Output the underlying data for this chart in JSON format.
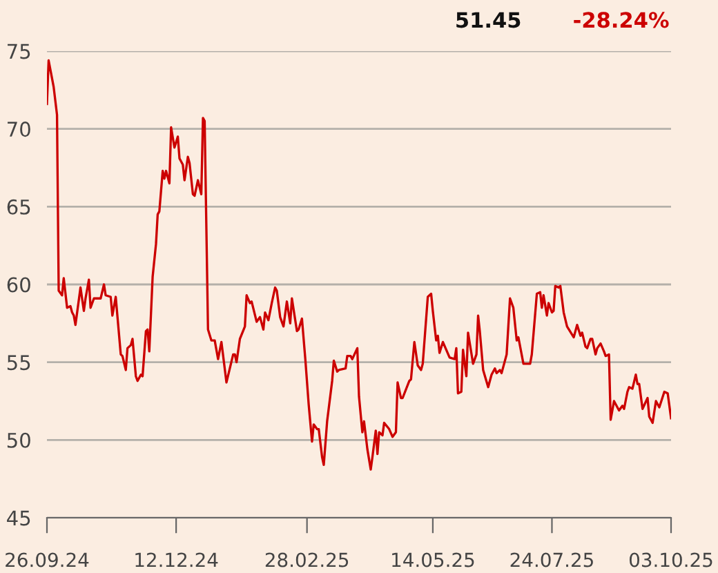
{
  "chart_data": {
    "type": "line",
    "annotations": [
      "51.45",
      "-28.24%"
    ],
    "xlim": [
      "2024-09-26",
      "2025-10-03"
    ],
    "xticks": [
      {
        "value": "2024-09-26",
        "label": "26.09.24"
      },
      {
        "value": "2024-12-12",
        "label": "12.12.24"
      },
      {
        "value": "2025-02-28",
        "label": "28.02.25"
      },
      {
        "value": "2025-05-14",
        "label": "14.05.25"
      },
      {
        "value": "2025-07-24",
        "label": "24.07.25"
      },
      {
        "value": "2025-10-03",
        "label": "03.10.25"
      }
    ],
    "ylim": [
      45,
      75
    ],
    "yticks": [
      45,
      50,
      55,
      60,
      65,
      70,
      75
    ],
    "grid": "y",
    "series": [
      {
        "color": "#cc0000",
        "x": [
          "2024-09-26",
          "2024-09-27",
          "2024-09-30",
          "2024-10-02",
          "2024-10-03",
          "2024-10-05",
          "2024-10-06",
          "2024-10-08",
          "2024-10-10",
          "2024-10-11",
          "2024-10-12",
          "2024-10-13",
          "2024-10-16",
          "2024-10-18",
          "2024-10-19",
          "2024-10-21",
          "2024-10-22",
          "2024-10-24",
          "2024-10-28",
          "2024-10-30",
          "2024-10-31",
          "2024-11-03",
          "2024-11-04",
          "2024-11-06",
          "2024-11-09",
          "2024-11-10",
          "2024-11-12",
          "2024-11-13",
          "2024-11-15",
          "2024-11-16",
          "2024-11-18",
          "2024-11-19",
          "2024-11-21",
          "2024-11-22",
          "2024-11-24",
          "2024-11-25",
          "2024-11-26",
          "2024-11-28",
          "2024-11-30",
          "2024-12-01",
          "2024-12-02",
          "2024-12-04",
          "2024-12-05",
          "2024-12-06",
          "2024-12-08",
          "2024-12-09",
          "2024-12-11",
          "2024-12-13",
          "2024-12-14",
          "2024-12-16",
          "2024-12-17",
          "2024-12-19",
          "2024-12-20",
          "2024-12-22",
          "2024-12-23",
          "2024-12-25",
          "2024-12-27",
          "2024-12-28",
          "2024-12-29",
          "2024-12-31",
          "2025-01-02",
          "2025-01-04",
          "2025-01-06",
          "2025-01-08",
          "2025-01-11",
          "2025-01-15",
          "2025-01-16",
          "2025-01-17",
          "2025-01-19",
          "2025-01-22",
          "2025-01-23",
          "2025-01-25",
          "2025-01-26",
          "2025-01-29",
          "2025-01-31",
          "2025-02-02",
          "2025-02-03",
          "2025-02-05",
          "2025-02-07",
          "2025-02-09",
          "2025-02-10",
          "2025-02-12",
          "2025-02-14",
          "2025-02-16",
          "2025-02-18",
          "2025-02-19",
          "2025-02-22",
          "2025-02-23",
          "2025-02-25",
          "2025-02-27",
          "2025-03-01",
          "2025-03-03",
          "2025-03-04",
          "2025-03-06",
          "2025-03-07",
          "2025-03-09",
          "2025-03-10",
          "2025-03-12",
          "2025-03-15",
          "2025-03-16",
          "2025-03-18",
          "2025-03-19",
          "2025-03-23",
          "2025-03-24",
          "2025-03-26",
          "2025-03-27",
          "2025-03-30",
          "2025-03-31",
          "2025-04-02",
          "2025-04-03",
          "2025-04-05",
          "2025-04-07",
          "2025-04-08",
          "2025-04-10",
          "2025-04-11",
          "2025-04-12",
          "2025-04-14",
          "2025-04-15",
          "2025-04-18",
          "2025-04-20",
          "2025-04-22",
          "2025-04-23",
          "2025-04-25",
          "2025-04-26",
          "2025-04-30",
          "2025-05-01",
          "2025-05-03",
          "2025-05-05",
          "2025-05-07",
          "2025-05-08",
          "2025-05-11",
          "2025-05-13",
          "2025-05-14",
          "2025-05-16",
          "2025-05-17",
          "2025-05-18",
          "2025-05-20",
          "2025-05-24",
          "2025-05-27",
          "2025-05-28",
          "2025-05-29",
          "2025-05-31",
          "2025-06-01",
          "2025-06-03",
          "2025-06-04",
          "2025-06-07",
          "2025-06-09",
          "2025-06-10",
          "2025-06-11",
          "2025-06-13",
          "2025-06-16",
          "2025-06-18",
          "2025-06-20",
          "2025-06-21",
          "2025-06-23",
          "2025-06-24",
          "2025-06-27",
          "2025-06-29",
          "2025-07-01",
          "2025-07-03",
          "2025-07-04",
          "2025-07-07",
          "2025-07-11",
          "2025-07-12",
          "2025-07-15",
          "2025-07-17",
          "2025-07-18",
          "2025-07-19",
          "2025-07-21",
          "2025-07-22",
          "2025-07-24",
          "2025-07-25",
          "2025-07-26",
          "2025-07-28",
          "2025-07-29",
          "2025-07-31",
          "2025-08-02",
          "2025-08-06",
          "2025-08-08",
          "2025-08-10",
          "2025-08-11",
          "2025-08-13",
          "2025-08-14",
          "2025-08-16",
          "2025-08-17",
          "2025-08-19",
          "2025-08-20",
          "2025-08-22",
          "2025-08-24",
          "2025-08-25",
          "2025-08-27",
          "2025-08-28",
          "2025-08-30",
          "2025-09-01",
          "2025-09-02",
          "2025-09-04",
          "2025-09-05",
          "2025-09-07",
          "2025-09-08",
          "2025-09-10",
          "2025-09-12",
          "2025-09-13",
          "2025-09-14",
          "2025-09-16",
          "2025-09-19",
          "2025-09-20",
          "2025-09-22",
          "2025-09-24",
          "2025-09-26",
          "2025-09-29",
          "2025-10-01",
          "2025-10-03"
        ],
        "values": [
          71.6,
          74.4,
          72.7,
          70.9,
          59.6,
          59.3,
          60.4,
          58.5,
          58.6,
          58.2,
          58.0,
          57.4,
          59.8,
          58.3,
          59.1,
          60.3,
          58.5,
          59.1,
          59.1,
          60.0,
          59.3,
          59.2,
          58.0,
          59.2,
          55.5,
          55.4,
          54.5,
          55.9,
          56.1,
          56.5,
          54.1,
          53.8,
          54.2,
          54.1,
          57.0,
          57.1,
          55.7,
          60.5,
          62.6,
          64.5,
          64.7,
          67.3,
          66.8,
          67.3,
          66.5,
          70.1,
          68.8,
          69.5,
          68.1,
          67.7,
          66.7,
          68.2,
          67.8,
          65.8,
          65.7,
          66.7,
          65.8,
          70.7,
          70.5,
          57.1,
          56.4,
          56.4,
          55.2,
          56.3,
          53.7,
          55.5,
          55.5,
          55.0,
          56.5,
          57.3,
          59.3,
          58.8,
          58.9,
          57.6,
          57.9,
          57.1,
          58.2,
          57.7,
          58.8,
          59.8,
          59.6,
          57.9,
          57.3,
          58.9,
          57.5,
          59.1,
          57.0,
          57.1,
          57.8,
          55.2,
          52.3,
          49.9,
          51.0,
          50.7,
          50.7,
          48.9,
          48.4,
          51.2,
          53.8,
          55.1,
          54.4,
          54.5,
          54.6,
          55.4,
          55.4,
          55.2,
          55.9,
          52.8,
          50.5,
          51.2,
          49.4,
          48.1,
          48.9,
          50.6,
          49.1,
          50.5,
          50.3,
          51.1,
          50.7,
          50.2,
          50.5,
          53.7,
          52.7,
          52.7,
          53.8,
          53.9,
          56.3,
          54.8,
          54.5,
          54.9,
          59.2,
          59.4,
          58.3,
          56.4,
          56.7,
          55.6,
          56.3,
          55.3,
          55.2,
          55.9,
          53.0,
          53.1,
          55.8,
          54.1,
          56.9,
          54.9,
          55.5,
          58.0,
          57.0,
          54.5,
          53.4,
          54.2,
          54.6,
          54.3,
          54.5,
          54.3,
          55.5,
          59.1,
          58.5,
          56.4,
          56.6,
          54.9,
          54.9,
          55.5,
          59.4,
          59.5,
          58.5,
          59.3,
          58.0,
          58.8,
          58.2,
          58.3,
          59.9,
          59.8,
          59.9,
          58.2,
          57.3,
          56.6,
          57.4,
          56.7,
          56.9,
          56.0,
          55.9,
          56.5,
          56.5,
          55.5,
          55.9,
          56.2,
          55.7,
          55.4,
          55.5,
          51.3,
          52.5,
          52.1,
          51.9,
          52.2,
          52.0,
          53.1,
          53.4,
          53.3,
          54.2,
          53.6,
          53.6,
          52.0,
          52.7,
          51.5,
          51.1,
          52.5,
          52.1,
          53.1,
          53.0,
          51.4
        ]
      }
    ]
  }
}
